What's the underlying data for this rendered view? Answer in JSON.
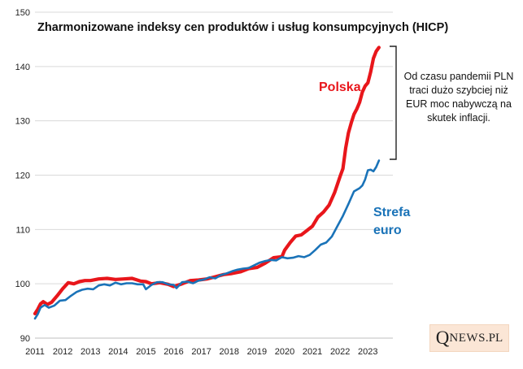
{
  "chart_data": {
    "type": "line",
    "title": "Zharmonizowane indeksy cen produktów i usług konsumpcyjnych (HICP)",
    "xlabel": "",
    "ylabel": "",
    "xlim": [
      2011.0,
      2023.9
    ],
    "ylim": [
      90,
      150
    ],
    "yticks": [
      "90",
      "100",
      "110",
      "120",
      "130",
      "140",
      "150"
    ],
    "xticks": [
      "2011",
      "2012",
      "2013",
      "2014",
      "2015",
      "2016",
      "2017",
      "2018",
      "2019",
      "2020",
      "2021",
      "2022",
      "2023"
    ],
    "series": [
      {
        "name": "Polska",
        "color": "#e8161b",
        "x": [
          2011.0,
          2011.1,
          2011.2,
          2011.3,
          2011.45,
          2011.6,
          2011.8,
          2012.0,
          2012.2,
          2012.4,
          2012.6,
          2012.8,
          2013.0,
          2013.3,
          2013.6,
          2013.9,
          2014.2,
          2014.5,
          2014.8,
          2015.0,
          2015.2,
          2015.5,
          2015.8,
          2016.0,
          2016.3,
          2016.6,
          2016.9,
          2017.2,
          2017.5,
          2017.8,
          2018.1,
          2018.4,
          2018.7,
          2019.0,
          2019.3,
          2019.6,
          2019.9,
          2020.0,
          2020.2,
          2020.4,
          2020.6,
          2020.8,
          2021.0,
          2021.2,
          2021.4,
          2021.6,
          2021.8,
          2022.0,
          2022.1,
          2022.2,
          2022.3,
          2022.4,
          2022.5,
          2022.6,
          2022.7,
          2022.8,
          2022.9,
          2023.0,
          2023.1,
          2023.2,
          2023.3,
          2023.4
        ],
        "y": [
          94.5,
          95.3,
          96.3,
          96.7,
          96.2,
          96.6,
          97.8,
          99.1,
          100.2,
          100.0,
          100.4,
          100.6,
          100.6,
          100.9,
          101.0,
          100.8,
          100.9,
          101.0,
          100.5,
          100.4,
          100.0,
          100.2,
          99.9,
          99.5,
          100.0,
          100.6,
          100.7,
          100.9,
          101.3,
          101.7,
          101.9,
          102.2,
          102.8,
          103.0,
          103.8,
          104.8,
          105.0,
          106.2,
          107.6,
          108.8,
          109.0,
          109.8,
          110.6,
          112.3,
          113.2,
          114.5,
          116.8,
          119.8,
          121.2,
          125.0,
          127.8,
          129.6,
          131.2,
          132.2,
          133.4,
          135.3,
          136.4,
          137.0,
          139.0,
          141.5,
          142.8,
          143.5
        ]
      },
      {
        "name": "Strefa euro",
        "color": "#1a73b8",
        "x": [
          2011.0,
          2011.1,
          2011.2,
          2011.35,
          2011.5,
          2011.7,
          2011.9,
          2012.1,
          2012.3,
          2012.5,
          2012.7,
          2012.9,
          2013.1,
          2013.3,
          2013.5,
          2013.7,
          2013.9,
          2014.1,
          2014.3,
          2014.5,
          2014.7,
          2014.9,
          2015.0,
          2015.2,
          2015.4,
          2015.6,
          2015.8,
          2016.0,
          2016.1,
          2016.3,
          2016.5,
          2016.7,
          2016.9,
          2017.1,
          2017.3,
          2017.5,
          2017.7,
          2017.9,
          2018.1,
          2018.3,
          2018.5,
          2018.7,
          2018.9,
          2019.1,
          2019.3,
          2019.5,
          2019.7,
          2019.9,
          2020.1,
          2020.3,
          2020.5,
          2020.7,
          2020.9,
          2021.1,
          2021.3,
          2021.5,
          2021.7,
          2021.9,
          2022.1,
          2022.3,
          2022.5,
          2022.7,
          2022.8,
          2022.9,
          2023.0,
          2023.1,
          2023.2,
          2023.3,
          2023.4
        ],
        "y": [
          93.6,
          94.4,
          95.6,
          96.1,
          95.6,
          96.0,
          96.9,
          97.0,
          97.8,
          98.5,
          98.9,
          99.1,
          99.0,
          99.7,
          99.9,
          99.7,
          100.2,
          99.9,
          100.1,
          100.1,
          99.9,
          99.9,
          99.0,
          99.8,
          100.3,
          100.3,
          99.9,
          99.8,
          99.2,
          100.3,
          100.4,
          100.1,
          100.6,
          100.8,
          101.2,
          101.0,
          101.6,
          101.9,
          102.3,
          102.6,
          102.8,
          102.9,
          103.4,
          103.9,
          104.2,
          104.4,
          104.3,
          104.9,
          104.7,
          104.8,
          105.1,
          104.9,
          105.3,
          106.2,
          107.2,
          107.6,
          108.7,
          110.6,
          112.5,
          114.7,
          117.0,
          117.6,
          118.1,
          119.2,
          120.9,
          121.0,
          120.7,
          121.5,
          122.7
        ]
      }
    ],
    "series_labels": [
      "Polska",
      "Strefa",
      "euro"
    ],
    "annotation": "Od czasu pandemii PLN traci dużo szybciej niż EUR moc nabywczą na skutek inflacji."
  },
  "logo": {
    "q": "Q",
    "rest": "NEWS",
    "domain": ".PL"
  }
}
